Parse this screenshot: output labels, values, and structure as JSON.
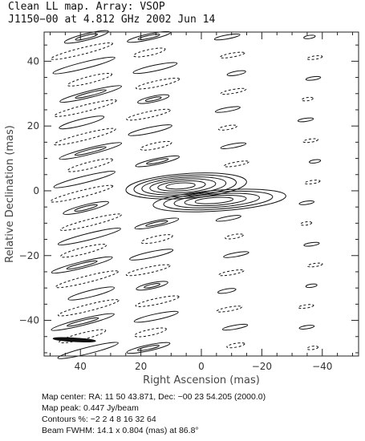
{
  "header": {
    "title_line1": "Clean LL map.  Array:  VSOP",
    "title_line2": "J1150−00 at 4.812 GHz 2002 Jun 14"
  },
  "footer": {
    "map_center": "Map center:  RA: 11 50 43.871,  Dec: −00 23 54.205 (2000.0)",
    "map_peak": "Map peak: 0.447 Jy/beam",
    "contours": "Contours %: −2 2 4 8 16 32 64",
    "beam": "Beam FWHM: 14.1 x 0.804 (mas) at 86.8°"
  },
  "chart_data": {
    "type": "contour",
    "title": "Clean LL map.  Array:  VSOP",
    "xlabel": "Right Ascension  (mas)",
    "ylabel": "Relative Declination  (mas)",
    "xlim": [
      52,
      -52
    ],
    "ylim": [
      -51,
      49
    ],
    "xticks": [
      40,
      20,
      0,
      -20,
      -40
    ],
    "yticks": [
      40,
      20,
      0,
      -20,
      -40
    ],
    "contour_levels_percent": [
      -2,
      2,
      4,
      8,
      16,
      32,
      64
    ],
    "peak_jy_per_beam": 0.447,
    "beam": {
      "bmaj_mas": 14.1,
      "bmin_mas": 0.804,
      "pa_deg": 86.8,
      "x": 42,
      "y": -46
    },
    "core": [
      {
        "x": 5,
        "y": 1.5,
        "rx": 20,
        "ry": 3.8,
        "angle": -4,
        "levels": [
          2,
          4,
          8,
          16,
          32,
          64
        ]
      },
      {
        "x": -6,
        "y": -3,
        "rx": 22,
        "ry": 3.2,
        "angle": -4,
        "levels": [
          2,
          4,
          8,
          16,
          32
        ]
      }
    ],
    "sidelobe_columns": [
      {
        "x": 38,
        "amplitude": 6,
        "spacing": 4.4,
        "length": 10,
        "width": 1.0,
        "angle": -14
      },
      {
        "x": 16,
        "amplitude": 5,
        "spacing": 4.8,
        "length": 7,
        "width": 0.9,
        "angle": -12
      },
      {
        "x": -10,
        "amplitude": 3,
        "spacing": 5.6,
        "length": 4,
        "width": 0.6,
        "angle": -10
      },
      {
        "x": -36,
        "amplitude": 2,
        "spacing": 6.4,
        "length": 2.4,
        "width": 0.5,
        "angle": -8
      }
    ]
  }
}
